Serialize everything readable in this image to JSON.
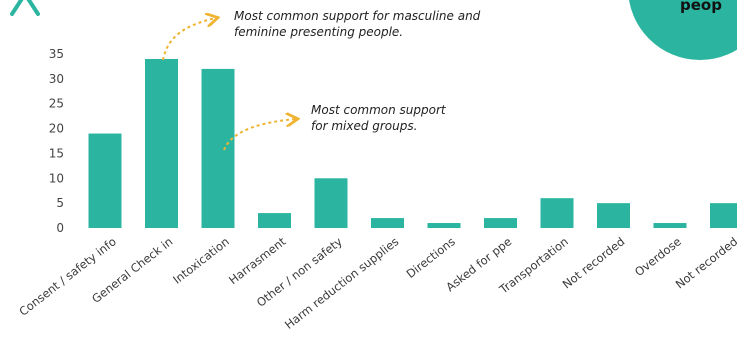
{
  "corner": {
    "text": "peop"
  },
  "annotations": {
    "top_line1": "Most common support  for masculine and",
    "top_line2": "feminine presenting people.",
    "mid_line1": "Most common support",
    "mid_line2": "for mixed groups."
  },
  "colors": {
    "bar": "#2bb5a1",
    "accent": "#2bb5a1",
    "arrow": "#f0b432",
    "logo": "#2bb5a1"
  },
  "icons": {
    "logo": "logo-icon"
  },
  "chart_data": {
    "type": "bar",
    "categories": [
      "Consent / safety info",
      "General Check in",
      "Intoxication",
      "Harrasment",
      "Other / non safety",
      "Harm reduction supplies",
      "Directions",
      "Asked for ppe",
      "Transportation",
      "Not recorded",
      "Overdose",
      "Not recorded"
    ],
    "values": [
      19,
      34,
      32,
      3,
      10,
      2,
      1,
      2,
      6,
      5,
      1,
      5
    ],
    "yticks": [
      0,
      5,
      10,
      15,
      20,
      25,
      30,
      35
    ],
    "ylim": [
      0,
      35
    ],
    "grid": false,
    "legend": "none",
    "title": "",
    "xlabel": "",
    "ylabel": ""
  }
}
